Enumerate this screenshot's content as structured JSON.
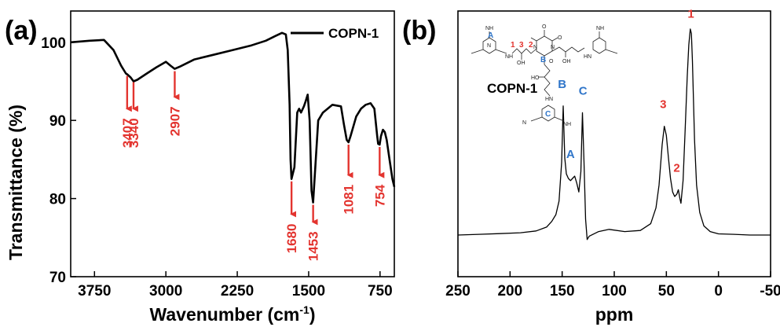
{
  "colors": {
    "annotation": "#e3342f",
    "nmr_label": "#2f75c9",
    "line": "#000000"
  },
  "chart_data": [
    {
      "panel_label": "(a)",
      "type": "line",
      "xlabel_main": "Wavenumber (cm",
      "xlabel_sup": "-1",
      "xlabel_close": ")",
      "ylabel": "Transmittance (%)",
      "xlim": [
        4000,
        600
      ],
      "ylim": [
        70,
        104
      ],
      "x_reversed": true,
      "xticks": [
        3750,
        3000,
        2250,
        1500,
        750
      ],
      "xtick_labels": [
        "3750",
        "3000",
        "2250",
        "1500",
        "750"
      ],
      "yticks": [
        70,
        80,
        90,
        100
      ],
      "ytick_labels": [
        "70",
        "80",
        "90",
        "100"
      ],
      "legend_position": "top-right",
      "series": [
        {
          "name": "COPN-1",
          "x": [
            4000,
            3800,
            3650,
            3550,
            3470,
            3420,
            3407,
            3370,
            3340,
            3300,
            3200,
            3100,
            3000,
            2950,
            2907,
            2850,
            2700,
            2500,
            2300,
            2100,
            1950,
            1850,
            1780,
            1740,
            1720,
            1700,
            1690,
            1680,
            1650,
            1620,
            1600,
            1580,
            1550,
            1530,
            1510,
            1490,
            1470,
            1453,
            1430,
            1400,
            1350,
            1250,
            1160,
            1130,
            1100,
            1081,
            1060,
            1000,
            950,
            900,
            850,
            810,
            780,
            770,
            754,
            740,
            720,
            700,
            680,
            650,
            620,
            600
          ],
          "y": [
            100,
            100.2,
            100.3,
            99.0,
            97.0,
            96.0,
            95.9,
            95.5,
            95.0,
            95.2,
            96.0,
            96.8,
            97.5,
            97.0,
            96.6,
            96.9,
            97.8,
            98.4,
            99.0,
            99.6,
            100.2,
            100.8,
            101.2,
            101.0,
            99.0,
            92.0,
            85.0,
            82.5,
            84.0,
            91.0,
            91.5,
            91.0,
            91.8,
            92.5,
            93.3,
            90.0,
            81.0,
            79.5,
            84.0,
            90.0,
            91.0,
            92.0,
            91.8,
            89.5,
            87.5,
            87.2,
            88.0,
            90.5,
            91.5,
            92.0,
            92.2,
            91.5,
            88.0,
            87.0,
            86.9,
            88.0,
            88.8,
            88.5,
            87.5,
            85.0,
            82.5,
            81.5
          ]
        }
      ],
      "annotations": [
        {
          "label": "3407",
          "x": 3407,
          "arrow_from": 96,
          "arrow_to": 91.5
        },
        {
          "label": "3340",
          "x": 3340,
          "arrow_from": 95.2,
          "arrow_to": 91.5
        },
        {
          "label": "2907",
          "x": 2907,
          "arrow_from": 96.6,
          "arrow_to": 93
        },
        {
          "label": "1680",
          "x": 1680,
          "arrow_from": 82.5,
          "arrow_to": 78
        },
        {
          "label": "1453",
          "x": 1453,
          "arrow_from": 79.5,
          "arrow_to": 77
        },
        {
          "label": "1081",
          "x": 1081,
          "arrow_from": 87.2,
          "arrow_to": 83
        },
        {
          "label": "754",
          "x": 754,
          "arrow_from": 86.9,
          "arrow_to": 83
        }
      ]
    },
    {
      "panel_label": "(b)",
      "type": "line",
      "xlabel": "ppm",
      "ylabel": "",
      "xlim": [
        250,
        -50
      ],
      "ylim": [
        0,
        100
      ],
      "x_reversed": true,
      "xticks": [
        250,
        200,
        150,
        100,
        50,
        0,
        -50
      ],
      "xtick_labels": [
        "250",
        "200",
        "150",
        "100",
        "50",
        "0",
        "-50"
      ],
      "series": [
        {
          "x": [
            250,
            230,
            210,
            190,
            175,
            165,
            160,
            156,
            153,
            150.5,
            149,
            147.5,
            146,
            144,
            142,
            140,
            138,
            136,
            134,
            132,
            130.5,
            129,
            127.5,
            126,
            124,
            115,
            105,
            90,
            75,
            65,
            60,
            57,
            54,
            52,
            50,
            48,
            46,
            44,
            42,
            40,
            38.5,
            37,
            36,
            34,
            32,
            30,
            28.5,
            27,
            26,
            25,
            23,
            21,
            18,
            14,
            8,
            0,
            -15,
            -30,
            -50
          ],
          "y": [
            8,
            8.3,
            8.6,
            9,
            9.8,
            11.5,
            14,
            17,
            23,
            40,
            65,
            42,
            35,
            33,
            32,
            33,
            34,
            31,
            27,
            36,
            62,
            40,
            15,
            6,
            7.5,
            9.5,
            10.5,
            9.5,
            10,
            13,
            20,
            30,
            48,
            56,
            52,
            42,
            33,
            27,
            25,
            26,
            28,
            24,
            22,
            32,
            54,
            78,
            92,
            99,
            97,
            85,
            50,
            30,
            18,
            12,
            9.5,
            8.5,
            8.3,
            8,
            8
          ]
        }
      ],
      "annotations": [
        {
          "label": "1",
          "ppm": 26.5,
          "level": 104,
          "color": "annotation"
        },
        {
          "label": "2",
          "ppm": 40,
          "level": 36,
          "color": "annotation"
        },
        {
          "label": "3",
          "ppm": 53,
          "level": 64,
          "color": "annotation"
        },
        {
          "label": "A",
          "ppm": 142,
          "level": 42,
          "color": "nmr_label"
        },
        {
          "label": "B",
          "ppm": 150,
          "level": 73,
          "color": "nmr_label"
        },
        {
          "label": "C",
          "ppm": 130,
          "level": 70,
          "color": "nmr_label"
        }
      ],
      "inset_structure": {
        "name": "COPN-1",
        "atom_labels": [
          "NH",
          "N",
          "NH",
          "OH",
          "O",
          "N",
          "N",
          "O",
          "O",
          "OH",
          "HN",
          "NH",
          "HO",
          "HN",
          "N",
          "NH"
        ],
        "site_labels": [
          "A",
          "B",
          "C",
          "1",
          "2",
          "3"
        ]
      }
    }
  ]
}
